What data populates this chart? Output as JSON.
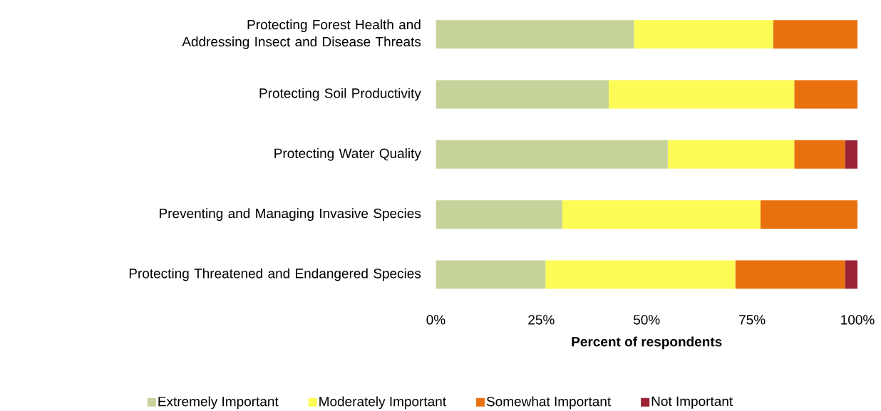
{
  "chart_data": {
    "type": "bar",
    "orientation": "horizontal",
    "stacked": true,
    "categories": [
      "Protecting Forest Health and Addressing Insect and Disease Threats",
      "Protecting Soil Productivity",
      "Protecting Water Quality",
      "Preventing and Managing Invasive Species",
      "Protecting Threatened and Endangered Species"
    ],
    "series": [
      {
        "name": "Extremely Important",
        "color": "#c5d39a",
        "values": [
          47,
          41,
          55,
          30,
          26
        ]
      },
      {
        "name": "Moderately Important",
        "color": "#fdfb55",
        "values": [
          33,
          44,
          30,
          47,
          45
        ]
      },
      {
        "name": "Somewhat Important",
        "color": "#e8700f",
        "values": [
          20,
          15,
          12,
          23,
          26
        ]
      },
      {
        "name": "Not Important",
        "color": "#9b2335",
        "values": [
          0,
          0,
          3,
          0,
          3
        ]
      }
    ],
    "xlim": [
      0,
      100
    ],
    "xticks": [
      {
        "value": 0,
        "label": "0%"
      },
      {
        "value": 25,
        "label": "25%"
      },
      {
        "value": 50,
        "label": "50%"
      },
      {
        "value": 75,
        "label": "75%"
      },
      {
        "value": 100,
        "label": "100%"
      }
    ],
    "xlabel": "Percent of respondents",
    "legend": "bottom",
    "grid": false
  }
}
